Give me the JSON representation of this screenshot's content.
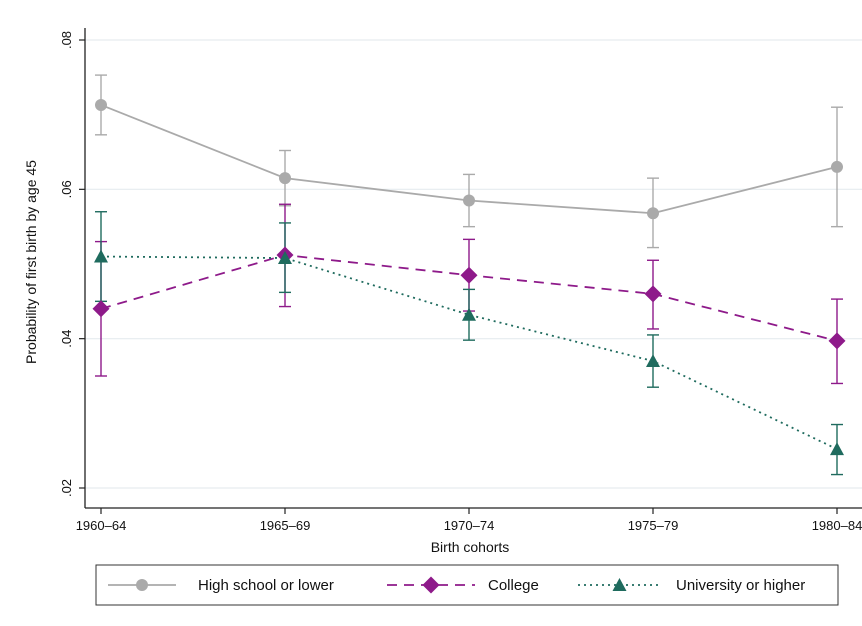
{
  "chart_data": {
    "type": "line",
    "title": "",
    "xlabel": "Birth cohorts",
    "ylabel": "Probability of first birth by age 45",
    "categories": [
      "1960–64",
      "1965–69",
      "1970–74",
      "1975–79",
      "1980–84"
    ],
    "yticks": [
      ".02",
      ".04",
      ".06",
      ".08"
    ],
    "ylim": [
      0.02,
      0.08
    ],
    "grid": true,
    "legend_position": "bottom",
    "series": [
      {
        "name": "High school or lower",
        "color": "#aaaaaa",
        "line_style": "solid",
        "marker": "circle",
        "values": [
          0.0713,
          0.0615,
          0.0585,
          0.0568,
          0.063
        ],
        "ci_low": [
          0.0673,
          0.0578,
          0.055,
          0.0522,
          0.055
        ],
        "ci_high": [
          0.0753,
          0.0652,
          0.062,
          0.0615,
          0.071
        ]
      },
      {
        "name": "College",
        "color": "#8e1a8a",
        "line_style": "dashed",
        "marker": "diamond",
        "values": [
          0.044,
          0.0512,
          0.0485,
          0.046,
          0.0397
        ],
        "ci_low": [
          0.035,
          0.0443,
          0.0437,
          0.0413,
          0.034
        ],
        "ci_high": [
          0.053,
          0.058,
          0.0533,
          0.0505,
          0.0453
        ]
      },
      {
        "name": "University or higher",
        "color": "#1f6b5e",
        "line_style": "dotted",
        "marker": "triangle",
        "values": [
          0.051,
          0.0508,
          0.0432,
          0.037,
          0.0252
        ],
        "ci_low": [
          0.045,
          0.0462,
          0.0398,
          0.0335,
          0.0218
        ],
        "ci_high": [
          0.057,
          0.0555,
          0.0466,
          0.0405,
          0.0285
        ]
      }
    ]
  }
}
